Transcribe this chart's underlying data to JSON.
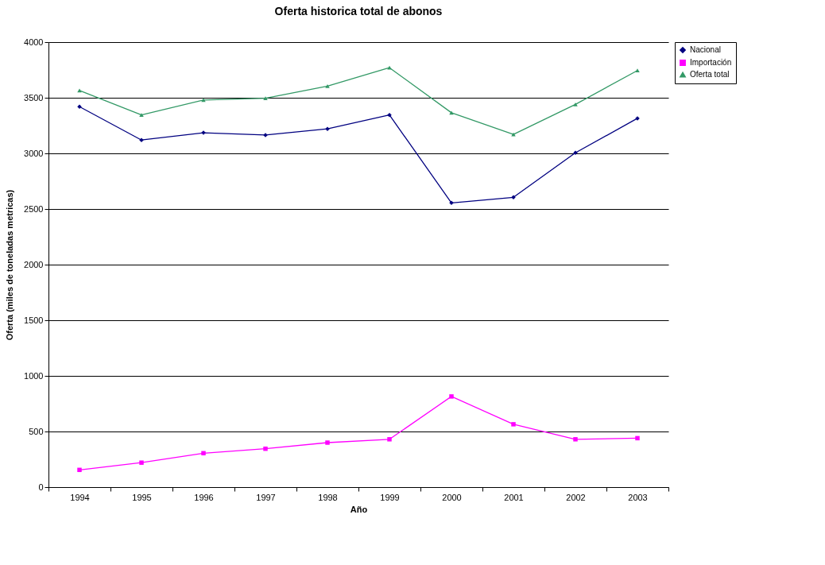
{
  "chart_data": {
    "type": "line",
    "title": "Oferta historica total de abonos",
    "xlabel": "Año",
    "ylabel": "Oferta (miles de toneladas metricas)",
    "categories": [
      "1994",
      "1995",
      "1996",
      "1997",
      "1998",
      "1999",
      "2000",
      "2001",
      "2002",
      "2003"
    ],
    "series": [
      {
        "name": "Nacional",
        "color": "#000080",
        "marker": "diamond",
        "values": [
          3420,
          3120,
          3185,
          3165,
          3220,
          3345,
          2555,
          2605,
          3005,
          3315
        ]
      },
      {
        "name": "Importación",
        "color": "#ff00ff",
        "marker": "square",
        "values": [
          155,
          220,
          305,
          345,
          400,
          430,
          815,
          565,
          430,
          440
        ]
      },
      {
        "name": "Oferta total",
        "color": "#339966",
        "marker": "triangle",
        "values": [
          3565,
          3345,
          3480,
          3495,
          3605,
          3770,
          3365,
          3170,
          3440,
          3745
        ]
      }
    ],
    "ylim": [
      0,
      4000
    ],
    "yticks": [
      0,
      500,
      1000,
      1500,
      2000,
      2500,
      3000,
      3500,
      4000
    ],
    "grid": "y",
    "legend": "right",
    "line_style": "solid"
  }
}
